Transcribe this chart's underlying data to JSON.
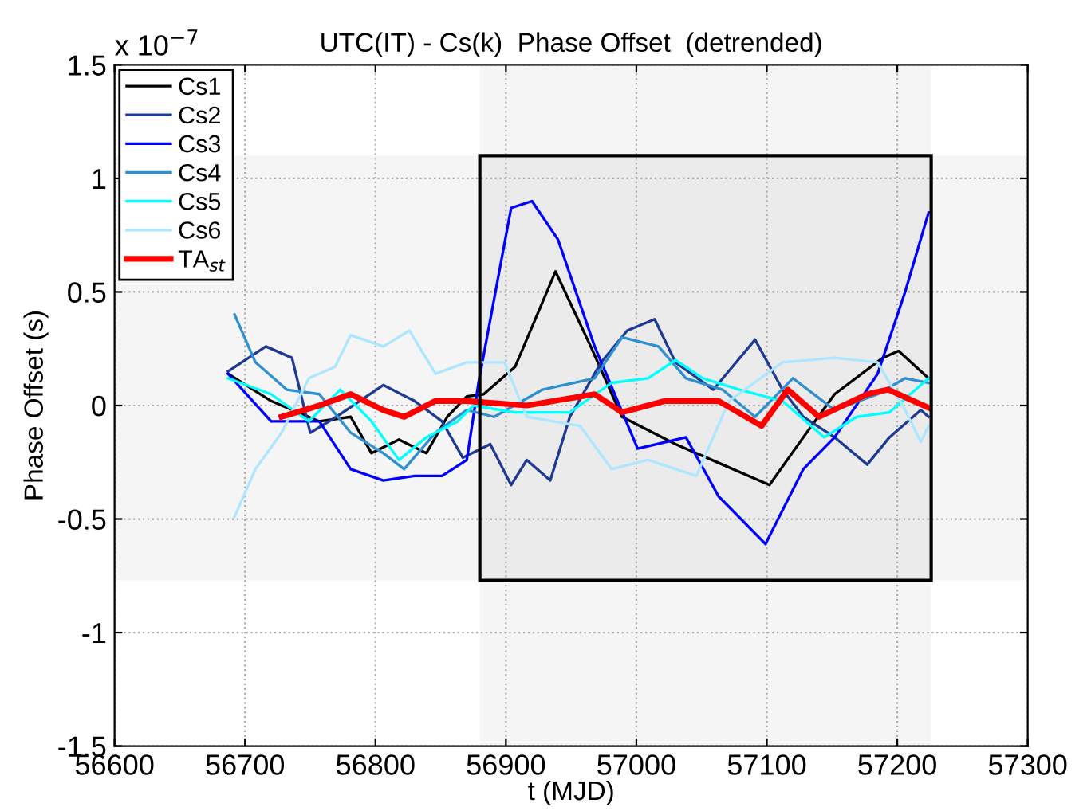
{
  "chart_data": {
    "type": "line",
    "title": "UTC(IT) - Cs(k)  Phase Offset  (detrended)",
    "xlabel": "t (MJD)",
    "ylabel": "Phase Offset (s)",
    "annotations": [
      "x 10$^{−7}$"
    ],
    "xlim": [
      56600,
      57300
    ],
    "xticks": [
      56600,
      56700,
      56800,
      56900,
      57000,
      57100,
      57200,
      57300
    ],
    "ylim": [
      -1.5,
      1.5
    ],
    "yticks": [
      -1.5,
      -1,
      -0.5,
      0,
      0.5,
      1,
      1.5
    ],
    "grid": true,
    "legend": "top left",
    "marker": "none",
    "line_style": "solid",
    "bands": [
      {
        "axis": "x",
        "from": 56880,
        "to": 57226,
        "color": "#000000"
      },
      {
        "axis": "y",
        "from": -0.77,
        "to": 1.1,
        "color": "#000000"
      }
    ],
    "series": [
      {
        "name": "Cs1",
        "color": "#000000",
        "x": [
          56687,
          56720,
          56757,
          56781,
          56797,
          56818,
          56839,
          56855,
          56870,
          56883,
          56907,
          56938,
          56965,
          56989,
          57030,
          57066,
          57102,
          57128,
          57152,
          57189,
          57201,
          57224
        ],
        "values": [
          0.14,
          0.02,
          -0.07,
          -0.05,
          -0.21,
          -0.15,
          -0.21,
          -0.05,
          0.04,
          0.05,
          0.17,
          0.59,
          0.26,
          -0.05,
          -0.17,
          -0.26,
          -0.35,
          -0.14,
          0.05,
          0.21,
          0.24,
          0.12
        ]
      },
      {
        "name": "Cs2",
        "color": "#1f3a93",
        "x": [
          56687,
          56716,
          56736,
          56750,
          56770,
          56806,
          56830,
          56851,
          56867,
          56888,
          56904,
          56916,
          56934,
          56949,
          56973,
          56993,
          57014,
          57030,
          57059,
          57091,
          57112,
          57128,
          57152,
          57177,
          57194,
          57218,
          57224
        ],
        "values": [
          0.15,
          0.26,
          0.21,
          -0.12,
          -0.05,
          0.09,
          0.02,
          -0.07,
          -0.23,
          -0.17,
          -0.35,
          -0.24,
          -0.33,
          -0.05,
          0.19,
          0.33,
          0.38,
          0.19,
          0.07,
          0.29,
          0.07,
          -0.05,
          -0.14,
          -0.26,
          -0.14,
          -0.02,
          -0.05
        ]
      },
      {
        "name": "Cs3",
        "color": "#0000ff",
        "x": [
          56687,
          56720,
          56757,
          56781,
          56806,
          56830,
          56851,
          56870,
          56879,
          56904,
          56920,
          56940,
          56968,
          57001,
          57038,
          57063,
          57099,
          57128,
          57152,
          57185,
          57206,
          57224
        ],
        "values": [
          0.14,
          -0.07,
          -0.07,
          -0.28,
          -0.33,
          -0.31,
          -0.31,
          -0.24,
          0.1,
          0.87,
          0.9,
          0.73,
          0.26,
          -0.19,
          -0.14,
          -0.4,
          -0.61,
          -0.28,
          -0.14,
          0.14,
          0.5,
          0.85
        ]
      },
      {
        "name": "Cs4",
        "color": "#2f8fcf",
        "x": [
          56692,
          56708,
          56732,
          56757,
          56781,
          56806,
          56822,
          56846,
          56870,
          56891,
          56928,
          56968,
          56989,
          57017,
          57038,
          57066,
          57091,
          57120,
          57152,
          57185,
          57206,
          57224
        ],
        "values": [
          0.4,
          0.19,
          0.07,
          0.05,
          -0.12,
          -0.21,
          -0.28,
          -0.12,
          -0.02,
          -0.05,
          0.07,
          0.12,
          0.3,
          0.26,
          0.12,
          0.07,
          -0.05,
          0.12,
          -0.02,
          0.05,
          0.12,
          0.1
        ]
      },
      {
        "name": "Cs5",
        "color": "#00ffff",
        "x": [
          56687,
          56720,
          56749,
          56773,
          56797,
          56818,
          56839,
          56863,
          56875,
          56907,
          56949,
          56981,
          57009,
          57030,
          57051,
          57079,
          57112,
          57144,
          57169,
          57194,
          57224
        ],
        "values": [
          0.12,
          0.05,
          -0.07,
          0.07,
          -0.07,
          -0.24,
          -0.14,
          -0.07,
          0.0,
          -0.03,
          -0.03,
          0.1,
          0.12,
          0.2,
          0.12,
          0.07,
          0.02,
          -0.14,
          -0.05,
          -0.03,
          0.12
        ]
      },
      {
        "name": "Cs6",
        "color": "#aee6ff",
        "x": [
          56692,
          56708,
          56728,
          56749,
          56769,
          56781,
          56806,
          56826,
          56846,
          56870,
          56899,
          56916,
          56957,
          56981,
          57009,
          57046,
          57071,
          57112,
          57152,
          57185,
          57206,
          57218,
          57224
        ],
        "values": [
          -0.49,
          -0.28,
          -0.12,
          0.12,
          0.17,
          0.31,
          0.26,
          0.33,
          0.14,
          0.19,
          0.19,
          -0.05,
          -0.09,
          -0.28,
          -0.24,
          -0.31,
          0.02,
          0.19,
          0.21,
          0.19,
          -0.02,
          -0.16,
          -0.09
        ]
      },
      {
        "name": "TA$_{st}$",
        "color": "#ff0000",
        "x": [
          56728,
          56757,
          56781,
          56806,
          56822,
          56846,
          56870,
          56916,
          56968,
          56989,
          57022,
          57063,
          57096,
          57116,
          57140,
          57177,
          57193,
          57224
        ],
        "values": [
          -0.05,
          0.0,
          0.05,
          -0.02,
          -0.05,
          0.02,
          0.02,
          0.0,
          0.05,
          -0.03,
          0.02,
          0.02,
          -0.09,
          0.07,
          -0.05,
          0.05,
          0.07,
          -0.01
        ]
      }
    ]
  }
}
